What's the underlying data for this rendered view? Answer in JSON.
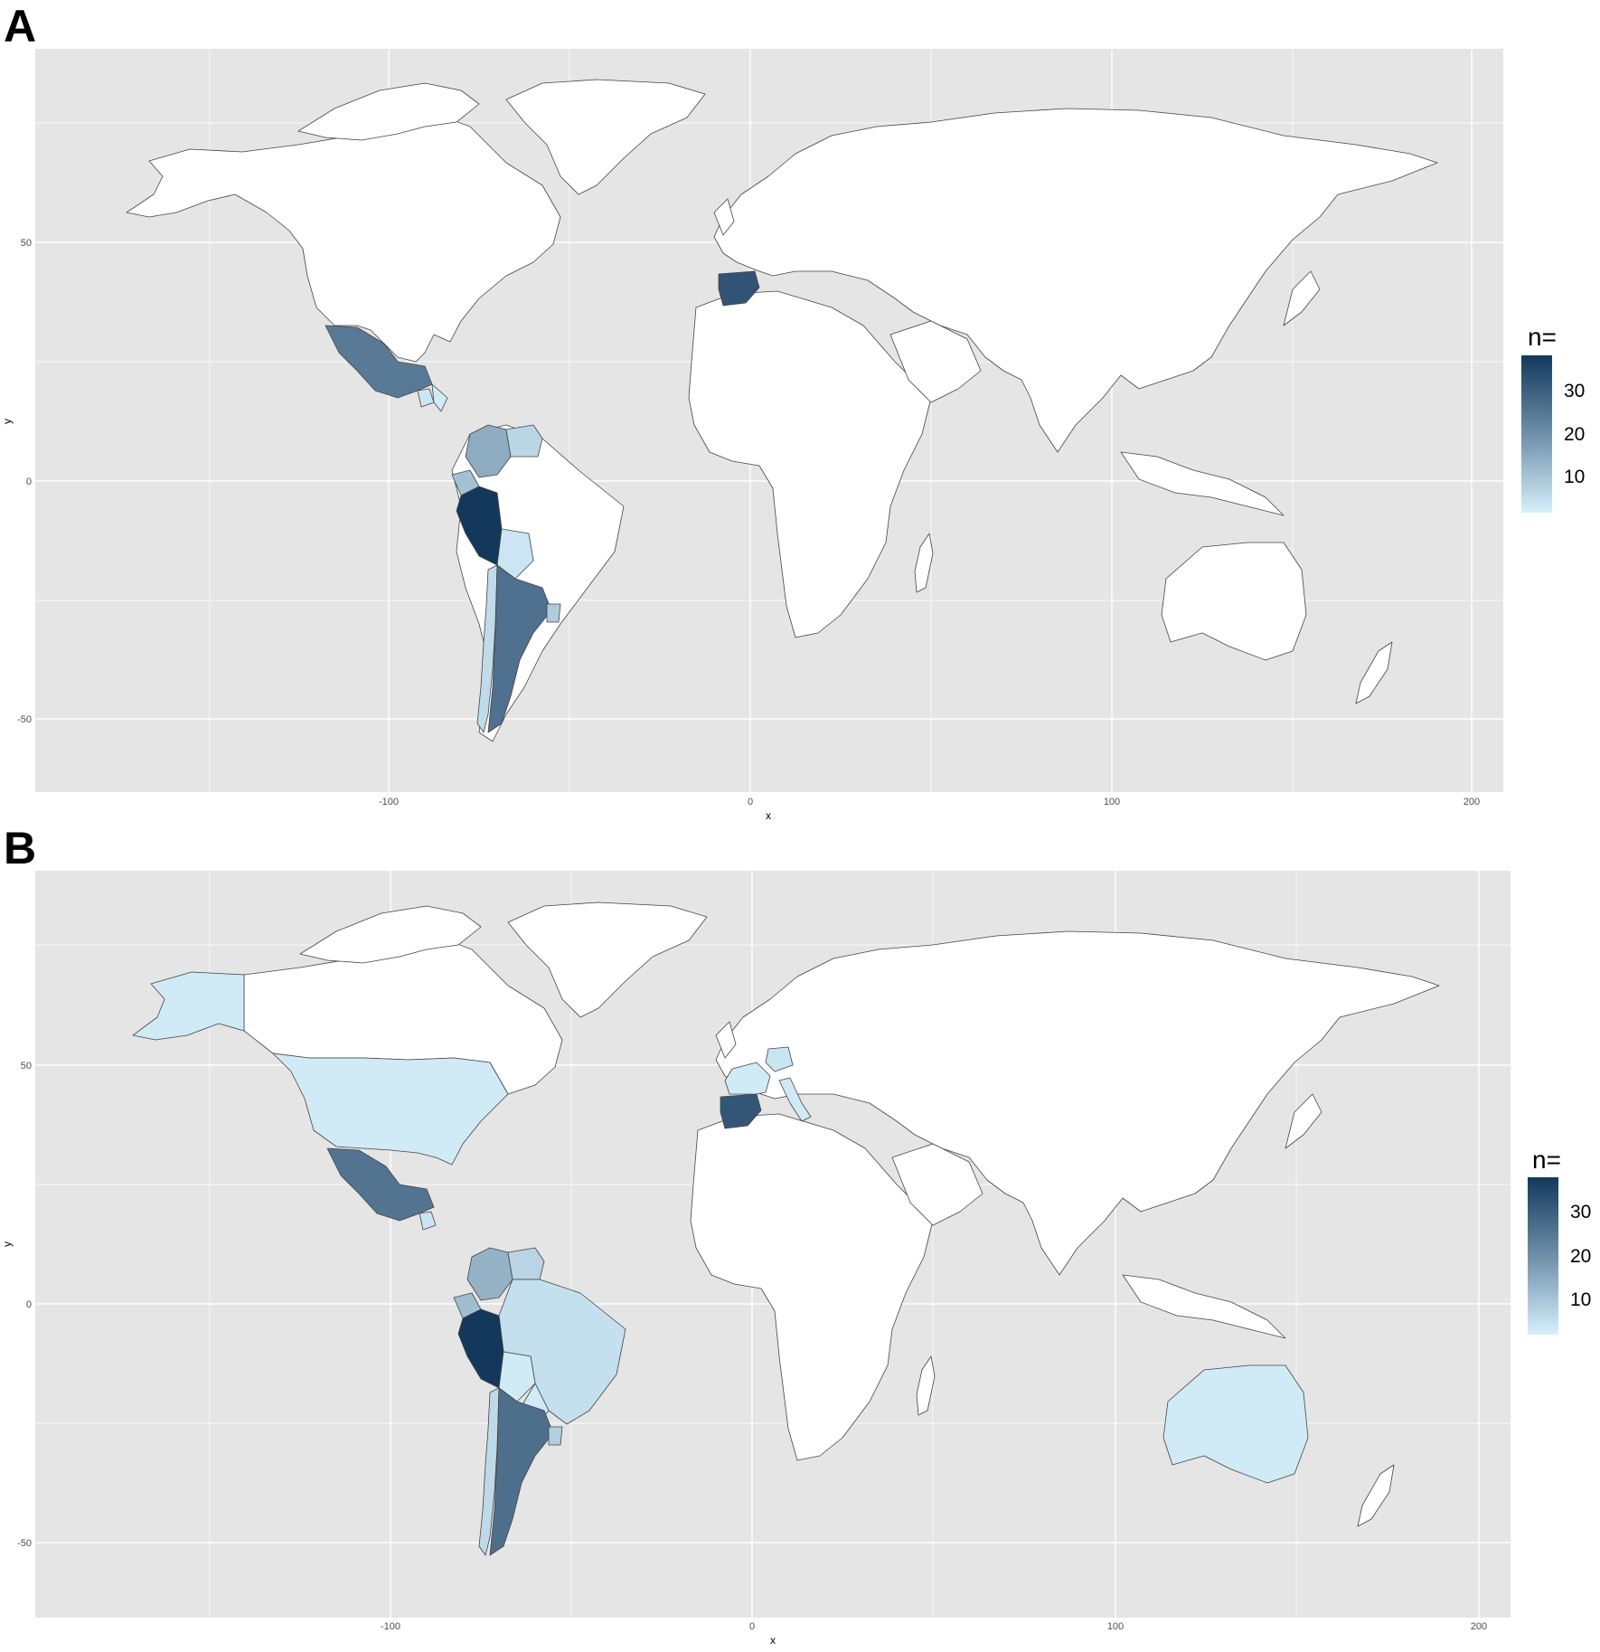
{
  "figure": {
    "panels": [
      {
        "letter": "A",
        "x_ticks": [
          "-100",
          "0",
          "100",
          "200"
        ],
        "y_ticks": [
          "50",
          "0",
          "-50"
        ],
        "xlabel": "x",
        "ylabel": "y",
        "legend": {
          "title": "n=",
          "ticks": [
            "30",
            "20",
            "10"
          ]
        },
        "countries": [
          {
            "name": "Spain",
            "n": 32
          },
          {
            "name": "Mexico",
            "n": 24
          },
          {
            "name": "Guatemala",
            "n": 3
          },
          {
            "name": "Honduras",
            "n": 2
          },
          {
            "name": "Colombia",
            "n": 14
          },
          {
            "name": "Venezuela",
            "n": 6
          },
          {
            "name": "Ecuador",
            "n": 10
          },
          {
            "name": "Peru",
            "n": 38
          },
          {
            "name": "Bolivia",
            "n": 3
          },
          {
            "name": "Chile",
            "n": 5
          },
          {
            "name": "Argentina",
            "n": 26
          },
          {
            "name": "Uruguay",
            "n": 8
          }
        ]
      },
      {
        "letter": "B",
        "x_ticks": [
          "-100",
          "0",
          "100",
          "200"
        ],
        "y_ticks": [
          "50",
          "0",
          "-50"
        ],
        "xlabel": "x",
        "ylabel": "y",
        "legend": {
          "title": "n=",
          "ticks": [
            "30",
            "20",
            "10"
          ]
        },
        "countries": [
          {
            "name": "Spain",
            "n": 30
          },
          {
            "name": "Mexico",
            "n": 24
          },
          {
            "name": "United States",
            "n": 2
          },
          {
            "name": "Alaska (United States)",
            "n": 2
          },
          {
            "name": "Guatemala",
            "n": 3
          },
          {
            "name": "Colombia",
            "n": 12
          },
          {
            "name": "Venezuela",
            "n": 6
          },
          {
            "name": "Ecuador",
            "n": 10
          },
          {
            "name": "Peru",
            "n": 36
          },
          {
            "name": "Brazil",
            "n": 4
          },
          {
            "name": "Bolivia",
            "n": 2
          },
          {
            "name": "Paraguay",
            "n": 2
          },
          {
            "name": "Chile",
            "n": 5
          },
          {
            "name": "Argentina",
            "n": 25
          },
          {
            "name": "Uruguay",
            "n": 7
          },
          {
            "name": "France",
            "n": 2
          },
          {
            "name": "Germany",
            "n": 3
          },
          {
            "name": "Italy",
            "n": 2
          },
          {
            "name": "Australia",
            "n": 2
          }
        ]
      }
    ],
    "colors": {
      "panel_bg": "#e5e5e5",
      "grid": "#ffffff",
      "land_default": "#ffffff",
      "border": "#444444",
      "scale_low": "#d6f0fb",
      "scale_high": "#13385c"
    }
  }
}
